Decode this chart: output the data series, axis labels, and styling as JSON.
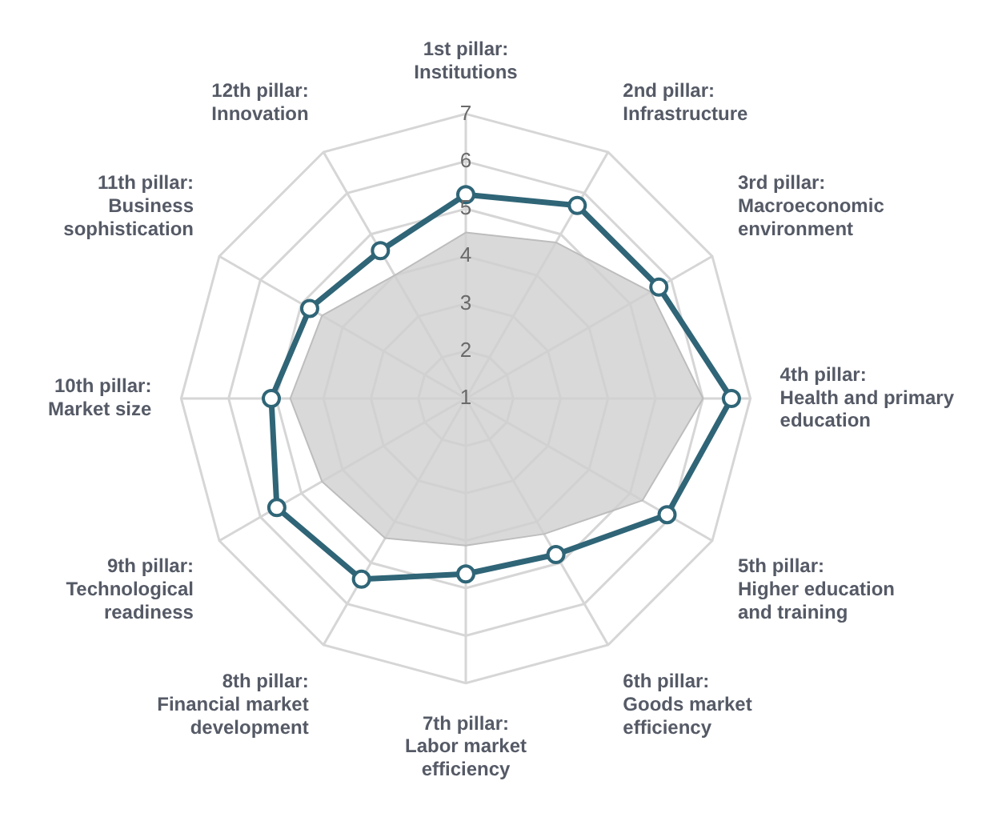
{
  "chart_data": {
    "type": "radar",
    "categories": [
      "1st pillar:\nInstitutions",
      "2nd pillar:\nInfrastructure",
      "3rd pillar:\nMacroeconomic\nenvironment",
      "4th pillar:\nHealth and primary\neducation",
      "5th pillar:\nHigher education\nand training",
      "6th pillar:\nGoods market\nefficiency",
      "7th pillar:\nLabor market\nefficiency",
      "8th pillar:\nFinancial market\ndevelopment",
      "9th pillar:\nTechnological\nreadiness",
      "10th pillar:\nMarket size",
      "11th pillar:\nBusiness\nsophistication",
      "12th pillar:\nInnovation"
    ],
    "series": [
      {
        "color": "#cfcfcf",
        "values": [
          4.5,
          4.8,
          5.5,
          6.0,
          5.3,
          4.3,
          4.1,
          4.4,
          4.5,
          4.7,
          4.5,
          4.0
        ]
      },
      {
        "color": "#2f6577",
        "values": [
          5.3,
          5.7,
          5.7,
          6.6,
          5.9,
          4.8,
          4.7,
          5.4,
          5.6,
          5.1,
          4.8,
          4.6
        ]
      }
    ],
    "ylim": [
      1,
      7
    ],
    "yticks": [
      1,
      2,
      3,
      4,
      5,
      6,
      7
    ],
    "grid": true,
    "legend": false,
    "marker": "circle"
  }
}
